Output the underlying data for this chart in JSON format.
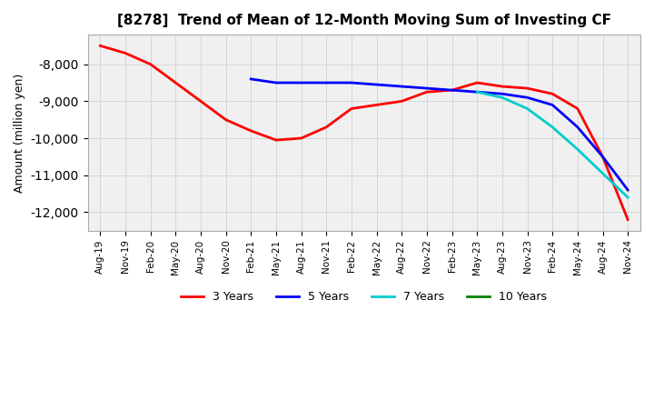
{
  "title": "[8278]  Trend of Mean of 12-Month Moving Sum of Investing CF",
  "ylabel": "Amount (million yen)",
  "background_color": "#ffffff",
  "grid_color": "#cccccc",
  "legend_labels": [
    "3 Years",
    "5 Years",
    "7 Years",
    "10 Years"
  ],
  "legend_colors": [
    "#ff0000",
    "#0000ff",
    "#00cccc",
    "#008000"
  ],
  "ylim": [
    -12500,
    -7200
  ],
  "yticks": [
    -8000,
    -9000,
    -10000,
    -11000,
    -12000
  ],
  "x_labels": [
    "Aug-19",
    "Nov-19",
    "Feb-20",
    "May-20",
    "Aug-20",
    "Nov-20",
    "Feb-21",
    "May-21",
    "Aug-21",
    "Nov-21",
    "Feb-22",
    "May-22",
    "Aug-22",
    "Nov-22",
    "Feb-23",
    "May-23",
    "Aug-23",
    "Nov-23",
    "Feb-24",
    "May-24",
    "Aug-24",
    "Nov-24"
  ],
  "series_3y": [
    -7500,
    -7700,
    -8000,
    -8500,
    -9000,
    -9500,
    -9800,
    -10050,
    -10000,
    -9700,
    -9200,
    -9100,
    -9000,
    -8750,
    -8700,
    -8500,
    -8600,
    -8650,
    -8800,
    -9200,
    -10500,
    -12200
  ],
  "series_5y": [
    null,
    null,
    null,
    null,
    null,
    null,
    -8400,
    -8500,
    -8500,
    -8500,
    -8500,
    -8550,
    -8600,
    -8650,
    -8700,
    -8750,
    -8800,
    -8900,
    -9100,
    -9700,
    -10500,
    -11400
  ],
  "series_7y": [
    null,
    null,
    null,
    null,
    null,
    null,
    null,
    null,
    null,
    null,
    null,
    null,
    null,
    null,
    null,
    -8750,
    -8900,
    -9200,
    -9700,
    -10300,
    -10950,
    -11600
  ],
  "series_10y": [
    null,
    null,
    null,
    null,
    null,
    null,
    null,
    null,
    null,
    null,
    null,
    null,
    null,
    null,
    null,
    null,
    null,
    null,
    null,
    null,
    null,
    null
  ]
}
